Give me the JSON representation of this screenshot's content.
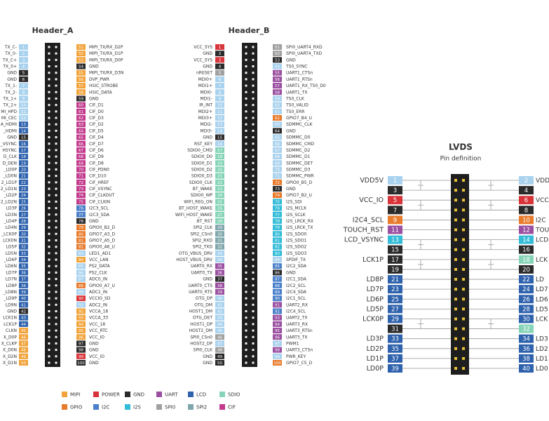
{
  "headers": [
    {
      "title": "Header_A",
      "left": [
        [
          1,
          "TX_C-",
          "#a9d2ee"
        ],
        [
          2,
          "TX_0-",
          "#a9d2ee"
        ],
        [
          3,
          "TX_C+",
          "#a9d2ee"
        ],
        [
          4,
          "TX_0+",
          "#a9d2ee"
        ],
        [
          5,
          "GND",
          "#2b2b2b"
        ],
        [
          6,
          "GND",
          "#2b2b2b"
        ],
        [
          7,
          "TX_1-",
          "#a9d2ee"
        ],
        [
          8,
          "TX_2-",
          "#a9d2ee"
        ],
        [
          9,
          "TX_1+",
          "#a9d2ee"
        ],
        [
          10,
          "TX_2+",
          "#a9d2ee"
        ],
        [
          11,
          "MI_HPD",
          "#a9d2ee"
        ],
        [
          12,
          "MI_CEC",
          "#a9d2ee"
        ],
        [
          13,
          "A_HDMI",
          "#2f62ad"
        ],
        [
          14,
          "_HDMI",
          "#2f62ad"
        ],
        [
          15,
          "GND",
          "#2b2b2b"
        ],
        [
          16,
          "_VSYNC",
          "#2f62ad"
        ],
        [
          17,
          "HSYNC",
          "#2f62ad"
        ],
        [
          18,
          "D_CLK",
          "#2f62ad"
        ],
        [
          19,
          "D_DEN",
          "#2f62ad"
        ],
        [
          20,
          "_LD0P",
          "#2f62ad"
        ],
        [
          21,
          "_LD0N",
          "#2f62ad"
        ],
        [
          22,
          "2_LD1P",
          "#2f62ad"
        ],
        [
          23,
          "2_LD1N",
          "#2f62ad"
        ],
        [
          24,
          "_LD2P",
          "#2f62ad"
        ],
        [
          25,
          "2_LD2N",
          "#2f62ad"
        ],
        [
          26,
          "LD3P",
          "#2f62ad"
        ],
        [
          27,
          "LD3N",
          "#2f62ad"
        ],
        [
          28,
          "_LD4P",
          "#2f62ad"
        ],
        [
          29,
          "LD4N",
          "#2f62ad"
        ],
        [
          30,
          "_LCK0P",
          "#2f62ad"
        ],
        [
          31,
          "LCK0N",
          "#2f62ad"
        ],
        [
          32,
          "LD5P",
          "#2f62ad"
        ],
        [
          33,
          "LD5N",
          "#2f62ad"
        ],
        [
          34,
          "_LD6P",
          "#2f62ad"
        ],
        [
          35,
          "LD6N",
          "#2f62ad"
        ],
        [
          36,
          "LD7P",
          "#2f62ad"
        ],
        [
          37,
          "LD7N",
          "#2f62ad"
        ],
        [
          38,
          "LD8P",
          "#2f62ad"
        ],
        [
          39,
          "_LD8N",
          "#2f62ad"
        ],
        [
          40,
          "_LD9P",
          "#2f62ad"
        ],
        [
          41,
          "LD9N",
          "#2f62ad"
        ],
        [
          42,
          "GND",
          "#2b2b2b"
        ],
        [
          43,
          "LCK1N",
          "#2f62ad"
        ],
        [
          44,
          "LCK1P",
          "#2f62ad"
        ],
        [
          45,
          "CLKN",
          "#f2a33a"
        ],
        [
          46,
          "X_D0P",
          "#f2a33a"
        ],
        [
          47,
          "X_CLKP",
          "#f2a33a"
        ],
        [
          48,
          "X_D0N",
          "#f2a33a"
        ],
        [
          49,
          "X_D2N",
          "#f2a33a"
        ],
        [
          50,
          "X_D1N",
          "#f2a33a"
        ]
      ],
      "right": [
        [
          51,
          "MIPI_TX/RX_D2P",
          "#f2a33a"
        ],
        [
          52,
          "MIPI_TX/RX_D1P",
          "#f2a33a"
        ],
        [
          53,
          "MIPI_TX/RX_D0P",
          "#f2a33a"
        ],
        [
          54,
          "GND",
          "#2b2b2b"
        ],
        [
          55,
          "MIPI_TX/RX_D3N",
          "#f2a33a"
        ],
        [
          56,
          "DVP_PWR",
          "#f2a33a"
        ],
        [
          57,
          "HSIC_STROBE",
          "#f2a33a"
        ],
        [
          58,
          "HSIC_DATA",
          "#f2a33a"
        ],
        [
          59,
          "GND",
          "#2b2b2b"
        ],
        [
          60,
          "CIF_D1",
          "#c23a8c"
        ],
        [
          61,
          "CIF_D0",
          "#c23a8c"
        ],
        [
          62,
          "CIF_D3",
          "#c23a8c"
        ],
        [
          63,
          "CIF_D2",
          "#c23a8c"
        ],
        [
          64,
          "CIF_D5",
          "#c23a8c"
        ],
        [
          65,
          "CIF_D4",
          "#c23a8c"
        ],
        [
          66,
          "CIF_D7",
          "#c23a8c"
        ],
        [
          67,
          "CIF_D6",
          "#c23a8c"
        ],
        [
          68,
          "CIF_D9",
          "#c23a8c"
        ],
        [
          69,
          "CIF_D8",
          "#c23a8c"
        ],
        [
          70,
          "CIF_PDN0",
          "#c23a8c"
        ],
        [
          71,
          "CIF_D10",
          "#c23a8c"
        ],
        [
          72,
          "CIF_HREF",
          "#c23a8c"
        ],
        [
          73,
          "CIF_VSYNC",
          "#c23a8c"
        ],
        [
          74,
          "CIF_CLKOUT",
          "#c23a8c"
        ],
        [
          75,
          "CIF_CLKIN",
          "#c23a8c"
        ],
        [
          76,
          "I2C3_SCL",
          "#4a7fc9"
        ],
        [
          77,
          "I2C3_SDA",
          "#4a7fc9"
        ],
        [
          78,
          "GND",
          "#2b2b2b"
        ],
        [
          79,
          "GPIO0_B2_D",
          "#e87b2c"
        ],
        [
          80,
          "GPIO7_A3_D",
          "#e87b2c"
        ],
        [
          81,
          "GPIO7_A5_D",
          "#e87b2c"
        ],
        [
          82,
          "GPIO0_A6_U",
          "#e87b2c"
        ],
        [
          83,
          "LED1_AD1",
          "#a9d2ee"
        ],
        [
          84,
          "VCC_LAN",
          "#f2a33a"
        ],
        [
          85,
          "PS2_DATA",
          "#a9d2ee"
        ],
        [
          86,
          "PS2_CLK",
          "#a9d2ee"
        ],
        [
          87,
          "ADC0_IN",
          "#a9d2ee"
        ],
        [
          88,
          "GPIO0_A7_U",
          "#e87b2c"
        ],
        [
          89,
          "ADC1_IN",
          "#a9d2ee"
        ],
        [
          90,
          "VCCIO_SD",
          "#d9343a"
        ],
        [
          91,
          "ADC2_IN",
          "#a9d2ee"
        ],
        [
          92,
          "VCCA_18",
          "#f2a33a"
        ],
        [
          93,
          "VCCA_33",
          "#f2a33a"
        ],
        [
          94,
          "VCC_18",
          "#f2a33a"
        ],
        [
          95,
          "VCC_RTC",
          "#f2a33a"
        ],
        [
          96,
          "VCC_IO",
          "#f2a33a"
        ],
        [
          97,
          "GND",
          "#2b2b2b"
        ],
        [
          98,
          "GND",
          "#2b2b2b"
        ],
        [
          99,
          "VCC_IO",
          "#d9343a"
        ],
        [
          100,
          "GND",
          "#2b2b2b"
        ]
      ]
    },
    {
      "title": "Header_B",
      "left": [
        [
          1,
          "VCC_SYS",
          "#d9343a"
        ],
        [
          2,
          "GND",
          "#2b2b2b"
        ],
        [
          3,
          "VCC_SYS",
          "#d9343a"
        ],
        [
          4,
          "GND",
          "#2b2b2b"
        ],
        [
          5,
          "nRESET",
          "#a0a0a0"
        ],
        [
          6,
          "MDI0+",
          "#a9d2ee"
        ],
        [
          7,
          "MDI1+",
          "#a9d2ee"
        ],
        [
          8,
          "MDI0-",
          "#a9d2ee"
        ],
        [
          9,
          "MDI1-",
          "#a9d2ee"
        ],
        [
          10,
          "IR_INT",
          "#a9d2ee"
        ],
        [
          11,
          "MDI2+",
          "#a9d2ee"
        ],
        [
          12,
          "MDI3+",
          "#a9d2ee"
        ],
        [
          13,
          "MDI2-",
          "#a9d2ee"
        ],
        [
          14,
          "MDI3-",
          "#a9d2ee"
        ],
        [
          15,
          "GND",
          "#2b2b2b"
        ],
        [
          16,
          "RST_KEY",
          "#a9d2ee"
        ],
        [
          17,
          "SDIO0_CMD",
          "#86d4b8"
        ],
        [
          18,
          "SDIO0_D0",
          "#86d4b8"
        ],
        [
          19,
          "SDIO0_D1",
          "#86d4b8"
        ],
        [
          20,
          "SDIO0_D2",
          "#86d4b8"
        ],
        [
          21,
          "SDIO0_D3",
          "#86d4b8"
        ],
        [
          22,
          "SDIO0_CLK",
          "#86d4b8"
        ],
        [
          23,
          "BT_WAKE",
          "#86d4b8"
        ],
        [
          24,
          "SDIO0_WP",
          "#86d4b8"
        ],
        [
          25,
          "WIFI_REG_ON",
          "#86d4b8"
        ],
        [
          26,
          "BT_HOST_WAKE",
          "#86d4b8"
        ],
        [
          27,
          "WIFI_HOST_WAKE",
          "#86d4b8"
        ],
        [
          28,
          "BT_RST",
          "#86d4b8"
        ],
        [
          29,
          "SPI2_CLK",
          "#7fa7ab"
        ],
        [
          30,
          "SPI2_CSn0",
          "#7fa7ab"
        ],
        [
          31,
          "SPI2_RXD",
          "#7fa7ab"
        ],
        [
          32,
          "SPI2_TXD",
          "#7fa7ab"
        ],
        [
          33,
          "OTG_VBUS_DRV",
          "#a9d2ee"
        ],
        [
          34,
          "HOST_VBUS_DRV",
          "#a9d2ee"
        ],
        [
          35,
          "UART0_RX",
          "#9a4fa0"
        ],
        [
          36,
          "UART0_TX",
          "#9a4fa0"
        ],
        [
          37,
          "GND",
          "#2b2b2b"
        ],
        [
          38,
          "UART0_CTS",
          "#9a4fa0"
        ],
        [
          39,
          "UART0_RTS",
          "#9a4fa0"
        ],
        [
          40,
          "OTG_DP",
          "#a9d2ee"
        ],
        [
          41,
          "OTG_DM",
          "#a9d2ee"
        ],
        [
          42,
          "HOST1_DM",
          "#a9d2ee"
        ],
        [
          43,
          "OTG_DET",
          "#a9d2ee"
        ],
        [
          44,
          "HOST1_DP",
          "#a9d2ee"
        ],
        [
          45,
          "HOST2_DM",
          "#a9d2ee"
        ],
        [
          46,
          "SPI0_CSn0",
          "#a0a0a0"
        ],
        [
          47,
          "HOST2_DP",
          "#a9d2ee"
        ],
        [
          48,
          "SPI0_CLK",
          "#a0a0a0"
        ],
        [
          49,
          "GND",
          "#2b2b2b"
        ],
        [
          50,
          "GND",
          "#2b2b2b"
        ]
      ],
      "right": [
        [
          51,
          "SPI0_UART4_RXD",
          "#a0a0a0"
        ],
        [
          52,
          "SPI0_UART4_TXD",
          "#a0a0a0"
        ],
        [
          53,
          "GND",
          "#2b2b2b"
        ],
        [
          54,
          "TS0_SYNC",
          "#a9d2ee"
        ],
        [
          55,
          "UART1_CTSn",
          "#9a4fa0"
        ],
        [
          56,
          "UART1_RTSn",
          "#9a4fa0"
        ],
        [
          57,
          "UART1_RX_TS0_D0",
          "#9a4fa0"
        ],
        [
          58,
          "UART1_TX",
          "#9a4fa0"
        ],
        [
          59,
          "TS0_CLK",
          "#a9d2ee"
        ],
        [
          60,
          "TS0_VALID",
          "#a9d2ee"
        ],
        [
          61,
          "TS0_ERR",
          "#a9d2ee"
        ],
        [
          62,
          "GPIO7_B4_U",
          "#e87b2c"
        ],
        [
          63,
          "SDMMC_CLK",
          "#a9d2ee"
        ],
        [
          64,
          "GND",
          "#2b2b2b"
        ],
        [
          65,
          "SDMMC_D0",
          "#a9d2ee"
        ],
        [
          66,
          "SDMMC_CMD",
          "#a9d2ee"
        ],
        [
          67,
          "SDMMC_D2",
          "#a9d2ee"
        ],
        [
          68,
          "SDMMC_D1",
          "#a9d2ee"
        ],
        [
          69,
          "SDMMC_DET",
          "#a9d2ee"
        ],
        [
          70,
          "SDMMC_D3",
          "#a9d2ee"
        ],
        [
          71,
          "SDMMC_PWR",
          "#a9d2ee"
        ],
        [
          72,
          "GPIO0_B5_D",
          "#e87b2c"
        ],
        [
          73,
          "GND",
          "#2b2b2b"
        ],
        [
          74,
          "GPIO7_B2_U",
          "#e87b2c"
        ],
        [
          75,
          "I2S_SDI",
          "#33bcd8"
        ],
        [
          76,
          "I2S_MCLK",
          "#33bcd8"
        ],
        [
          77,
          "I2S_SCLK",
          "#33bcd8"
        ],
        [
          78,
          "I2S_LRCK_RX",
          "#33bcd8"
        ],
        [
          79,
          "I2S_LRCK_TX",
          "#33bcd8"
        ],
        [
          80,
          "I2S_SDO0",
          "#33bcd8"
        ],
        [
          81,
          "I2S_SDO1",
          "#33bcd8"
        ],
        [
          82,
          "I2S_SDO2",
          "#33bcd8"
        ],
        [
          83,
          "I2S_SDO3",
          "#33bcd8"
        ],
        [
          84,
          "SPDIF_TX",
          "#a9d2ee"
        ],
        [
          85,
          "I2C2_SDA",
          "#4a7fc9"
        ],
        [
          86,
          "GND",
          "#2b2b2b"
        ],
        [
          87,
          "I2C1_SDA",
          "#4a7fc9"
        ],
        [
          88,
          "I2C2_SCL",
          "#4a7fc9"
        ],
        [
          89,
          "I2C4_SDA",
          "#4a7fc9"
        ],
        [
          90,
          "I2C1_SCL",
          "#4a7fc9"
        ],
        [
          91,
          "UART2_RX",
          "#9a4fa0"
        ],
        [
          92,
          "I2C4_SCL",
          "#4a7fc9"
        ],
        [
          93,
          "UART2_TX",
          "#9a4fa0"
        ],
        [
          94,
          "UART3_RX",
          "#9a4fa0"
        ],
        [
          95,
          "UART3_RTSn",
          "#9a4fa0"
        ],
        [
          96,
          "UART3_TX",
          "#9a4fa0"
        ],
        [
          97,
          "PWM1",
          "#a9d2ee"
        ],
        [
          98,
          "UART3_CTSn",
          "#9a4fa0"
        ],
        [
          99,
          "PWR_KEY",
          "#a9d2ee"
        ],
        [
          100,
          "GPIO7_C5_D",
          "#e87b2c"
        ]
      ]
    }
  ],
  "lvds": {
    "title": "LVDS",
    "subtitle": "Pin definition",
    "left": [
      [
        1,
        "VDD5V",
        "#a9d2ee"
      ],
      [
        3,
        null,
        "#2b2b2b"
      ],
      [
        5,
        "VCC_IO",
        "#d9343a"
      ],
      [
        7,
        null,
        "#2b2b2b"
      ],
      [
        9,
        "I2C4_SCL",
        "#e87b2c"
      ],
      [
        11,
        "TOUCH_RST",
        "#9a4fa0"
      ],
      [
        13,
        "LCD_VSYNC",
        "#33bcd8"
      ],
      [
        15,
        null,
        "#2b2b2b"
      ],
      [
        17,
        "LCK1P",
        "#2b2b2b"
      ],
      [
        19,
        null,
        "#2b2b2b"
      ],
      [
        21,
        "LD8P",
        "#2f62ad"
      ],
      [
        23,
        "LD7P",
        "#2f62ad"
      ],
      [
        25,
        "LD6P",
        "#2f62ad"
      ],
      [
        27,
        "LD5P",
        "#2f62ad"
      ],
      [
        29,
        "LCK0P",
        "#2f62ad"
      ],
      [
        31,
        null,
        "#2b2b2b"
      ],
      [
        33,
        "LD3P",
        "#2f62ad"
      ],
      [
        35,
        "LD2P",
        "#2f62ad"
      ],
      [
        37,
        "LD1P",
        "#2f62ad"
      ],
      [
        39,
        "LD0P",
        "#2f62ad"
      ]
    ],
    "right": [
      [
        2,
        "VDD",
        "#a9d2ee"
      ],
      [
        4,
        null,
        "#2b2b2b"
      ],
      [
        6,
        "VCC",
        "#d9343a"
      ],
      [
        8,
        null,
        "#2b2b2b"
      ],
      [
        10,
        "I2C",
        "#e87b2c"
      ],
      [
        12,
        "TOU",
        "#9a4fa0"
      ],
      [
        14,
        "LCD",
        "#33bcd8"
      ],
      [
        16,
        null,
        "#2b2b2b"
      ],
      [
        18,
        "LCK",
        "#86d4b8"
      ],
      [
        20,
        null,
        "#2b2b2b"
      ],
      [
        22,
        "LD",
        "#2f62ad"
      ],
      [
        24,
        "LD7",
        "#2f62ad"
      ],
      [
        26,
        "LD6",
        "#2f62ad"
      ],
      [
        28,
        "LD5",
        "#2f62ad"
      ],
      [
        30,
        "LCK",
        "#2f62ad"
      ],
      [
        32,
        null,
        "#86d4b8"
      ],
      [
        34,
        "LD3",
        "#2f62ad"
      ],
      [
        36,
        "LD2",
        "#2f62ad"
      ],
      [
        38,
        "LD1",
        "#2f62ad"
      ],
      [
        40,
        "LD0",
        "#2f62ad"
      ]
    ]
  },
  "legend": [
    {
      "label": "MIPI",
      "color": "#f2a33a"
    },
    {
      "label": "POWER",
      "color": "#d9343a"
    },
    {
      "label": "GND",
      "color": "#2b2b2b"
    },
    {
      "label": "UART",
      "color": "#9a4fa0"
    },
    {
      "label": "LCD",
      "color": "#2f62ad"
    },
    {
      "label": "SDIO",
      "color": "#86d4b8"
    },
    {
      "label": "GPIO",
      "color": "#e87b2c"
    },
    {
      "label": "I2C",
      "color": "#4a7fc9"
    },
    {
      "label": "I2S",
      "color": "#33bcd8"
    },
    {
      "label": "SPI0",
      "color": "#a0a0a0"
    },
    {
      "label": "SPI2",
      "color": "#7fa7ab"
    },
    {
      "label": "CIF",
      "color": "#c23a8c"
    }
  ]
}
